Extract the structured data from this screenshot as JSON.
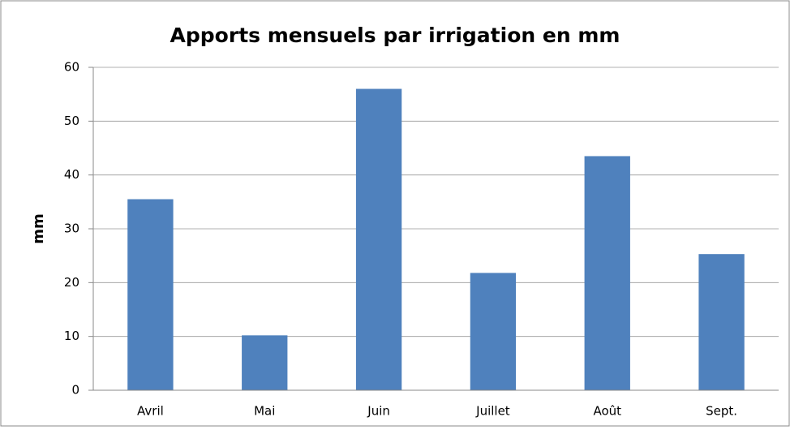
{
  "chart_data": {
    "type": "bar",
    "title": "Apports mensuels par irrigation en mm",
    "y_label": "mm",
    "categories": [
      "Avril",
      "Mai",
      "Juin",
      "Juillet",
      "Août",
      "Sept."
    ],
    "values": [
      35.5,
      10.2,
      56,
      21.8,
      43.5,
      25.3
    ],
    "color": "#4f81bd",
    "ylim": [
      0,
      60
    ],
    "yticks": [
      0,
      10,
      20,
      30,
      40,
      50,
      60
    ],
    "grid": true
  }
}
